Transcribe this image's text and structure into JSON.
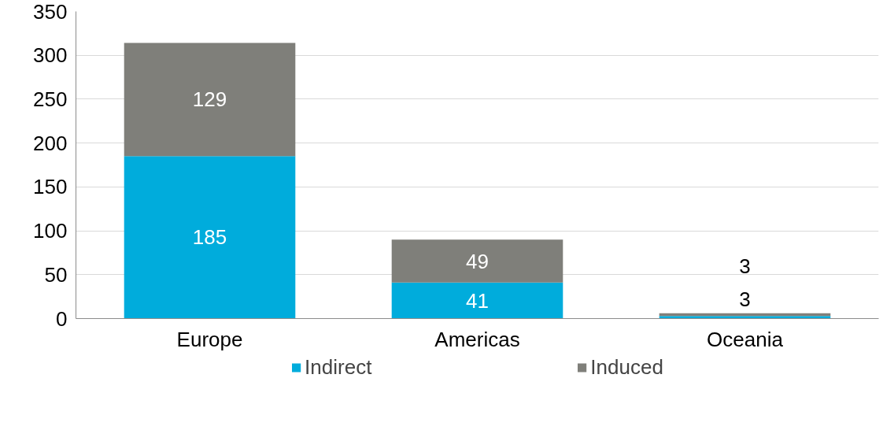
{
  "chart_data": {
    "type": "bar",
    "stacked": true,
    "categories": [
      "Europe",
      "Americas",
      "Oceania"
    ],
    "series": [
      {
        "name": "Indirect",
        "color": "#00acdc",
        "values": [
          185,
          41,
          3
        ]
      },
      {
        "name": "Induced",
        "color": "#7f7f7a",
        "values": [
          129,
          49,
          3
        ]
      }
    ],
    "ylim": [
      0,
      350
    ],
    "yticks": [
      0,
      50,
      100,
      150,
      200,
      250,
      300,
      350
    ],
    "grid": "y",
    "legend": "bottom",
    "data_labels": true
  }
}
